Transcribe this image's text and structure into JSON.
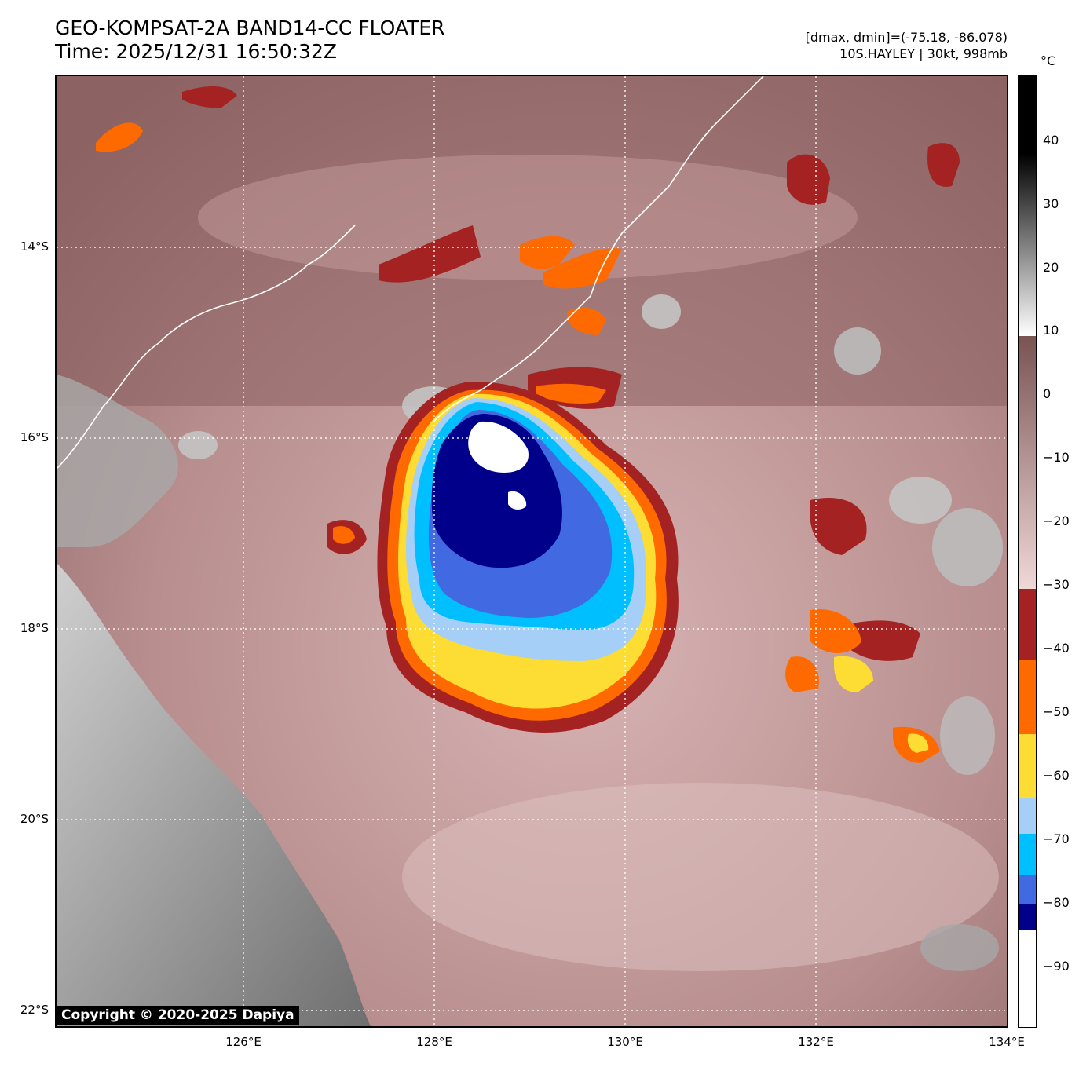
{
  "header": {
    "title_line1": "GEO-KOMPSAT-2A BAND14-CC FLOATER",
    "title_line2": "Time: 2025/12/31 16:50:32Z",
    "info_line1": "[dmax, dmin]=(-75.18, -86.078)",
    "info_line2": "10S.HAYLEY | 30kt, 998mb"
  },
  "map": {
    "lat_labels": [
      "14°S",
      "16°S",
      "18°S",
      "20°S",
      "22°S"
    ],
    "lon_labels": [
      "126°E",
      "128°E",
      "130°E",
      "132°E",
      "134°E"
    ],
    "copyright": "Copyright © 2020-2025 Dapiya"
  },
  "colorbar": {
    "unit": "°C",
    "tick_labels": [
      "40",
      "30",
      "20",
      "10",
      "0",
      "−10",
      "−20",
      "−30",
      "−40",
      "−50",
      "−60",
      "−70",
      "−80",
      "−90"
    ],
    "colors": {
      "white": "#ffffff",
      "dark_navy": "#00008b",
      "royal_blue": "#4169e1",
      "sky_blue": "#00bfff",
      "light_blue": "#a5cff7",
      "yellow": "#fddc34",
      "orange": "#ff6a00",
      "dark_red": "#a52222",
      "pink_light": "#ecd2d2",
      "brown_gray": "#7a5353"
    }
  }
}
